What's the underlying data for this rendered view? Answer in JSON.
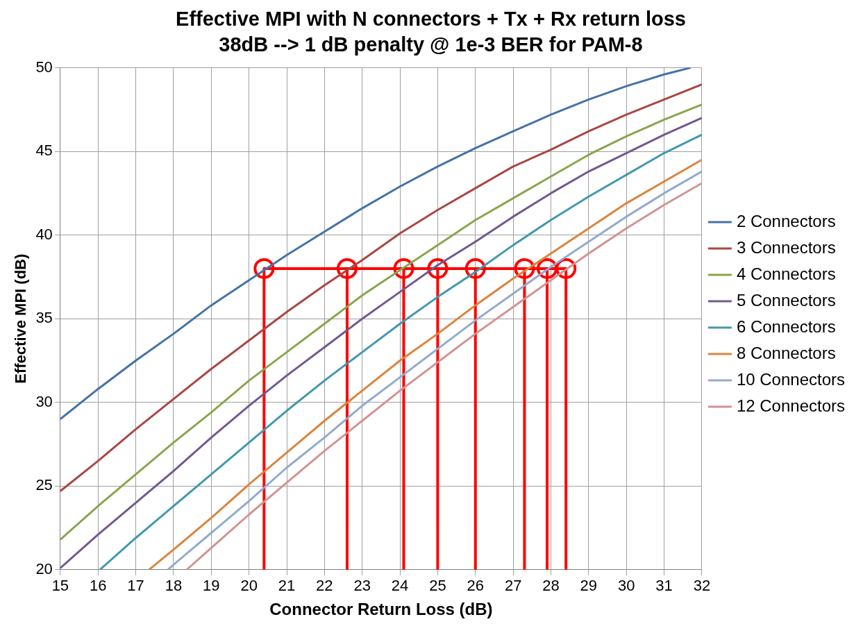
{
  "chart_data": {
    "type": "line",
    "title": "Effective MPI with N connectors + Tx + Rx return loss",
    "subtitle": "38dB --> 1 dB penalty @ 1e-3 BER for PAM-8",
    "xlabel": "Connector Return Loss (dB)",
    "ylabel": "Effective MPI (dB)",
    "xlim": [
      15,
      32
    ],
    "xticks": [
      15,
      16,
      17,
      18,
      19,
      20,
      21,
      22,
      23,
      24,
      25,
      26,
      27,
      28,
      29,
      30,
      31,
      32
    ],
    "ylim": [
      20,
      50
    ],
    "yticks": [
      20,
      25,
      30,
      35,
      40,
      45,
      50
    ],
    "grid": true,
    "legend": "right",
    "marker": "none",
    "line_style": "solid",
    "x": [
      15,
      16,
      17,
      18,
      19,
      20,
      21,
      22,
      23,
      24,
      25,
      26,
      27,
      28,
      29,
      30,
      31,
      32
    ],
    "series": [
      {
        "name": "2 Connectors",
        "color": "#4572a7",
        "x": [
          15,
          16,
          17,
          18,
          19,
          20,
          21,
          22,
          23,
          24,
          25,
          26,
          27,
          28,
          29,
          30,
          31,
          31.7
        ],
        "values": [
          29.0,
          30.8,
          32.5,
          34.1,
          35.8,
          37.3,
          38.8,
          40.2,
          41.6,
          42.9,
          44.1,
          45.2,
          46.2,
          47.2,
          48.1,
          48.9,
          49.6,
          50.0
        ]
      },
      {
        "name": "3 Connectors",
        "color": "#aa4643",
        "values": [
          24.7,
          26.5,
          28.4,
          30.2,
          32.0,
          33.7,
          35.4,
          37.0,
          38.5,
          40.1,
          41.5,
          42.8,
          44.1,
          45.1,
          46.2,
          47.2,
          48.1,
          49.0
        ]
      },
      {
        "name": "4 Connectors",
        "color": "#89a54e",
        "values": [
          21.8,
          23.8,
          25.7,
          27.6,
          29.4,
          31.3,
          33.0,
          34.7,
          36.4,
          37.9,
          39.4,
          40.9,
          42.2,
          43.5,
          44.8,
          45.9,
          46.9,
          47.8
        ]
      },
      {
        "name": "5 Connectors",
        "color": "#71588f",
        "values": [
          20.1,
          22.1,
          24.0,
          25.9,
          27.9,
          29.8,
          31.6,
          33.3,
          35.0,
          36.6,
          38.2,
          39.6,
          41.1,
          42.5,
          43.8,
          44.9,
          46.0,
          47.0
        ]
      },
      {
        "name": "6 Connectors",
        "color": "#4198af",
        "x": [
          16.05,
          17,
          18,
          19,
          20,
          21,
          22,
          23,
          24,
          25,
          26,
          27,
          28,
          29,
          30,
          31,
          32
        ],
        "values": [
          20.0,
          21.9,
          23.8,
          25.7,
          27.6,
          29.5,
          31.3,
          33.0,
          34.7,
          36.3,
          37.8,
          39.4,
          40.9,
          42.3,
          43.6,
          44.9,
          46.0
        ]
      },
      {
        "name": "8 Connectors",
        "color": "#db843d",
        "x": [
          17.35,
          18,
          19,
          20,
          21,
          22,
          23,
          24,
          25,
          26,
          27,
          28,
          29,
          30,
          31,
          32
        ],
        "values": [
          20.0,
          21.2,
          23.1,
          25.1,
          27.0,
          28.9,
          30.7,
          32.5,
          34.1,
          35.8,
          37.4,
          38.9,
          40.4,
          41.9,
          43.2,
          44.5
        ]
      },
      {
        "name": "10 Connectors",
        "color": "#93a9cf",
        "x": [
          17.85,
          18,
          19,
          20,
          21,
          22,
          23,
          24,
          25,
          26,
          27,
          28,
          29,
          30,
          31,
          32
        ],
        "values": [
          20.0,
          20.3,
          22.2,
          24.1,
          26.1,
          27.9,
          29.8,
          31.5,
          33.2,
          34.9,
          36.5,
          38.1,
          39.6,
          41.1,
          42.5,
          43.8
        ]
      },
      {
        "name": "12 Connectors",
        "color": "#d19392",
        "x": [
          18.35,
          19,
          20,
          21,
          22,
          23,
          24,
          25,
          26,
          27,
          28,
          29,
          30,
          31,
          32
        ],
        "values": [
          20.0,
          21.3,
          23.3,
          25.2,
          27.1,
          28.9,
          30.7,
          32.4,
          34.1,
          35.7,
          37.3,
          38.9,
          40.4,
          41.8,
          43.1
        ]
      },
      {
        "color": "#ff0000",
        "x": [
          20.4,
          20.4,
          22.6,
          22.6,
          22.6,
          24.1,
          24.1,
          24.1,
          25.0,
          25.0,
          25.0,
          26.0,
          26.0,
          26.0,
          27.3,
          27.3,
          27.3,
          27.9,
          27.9,
          27.9,
          28.4,
          28.4
        ],
        "values": [
          20,
          38,
          38,
          20,
          38,
          38,
          20,
          38,
          38,
          20,
          38,
          38,
          20,
          38,
          38,
          20,
          38,
          38,
          20,
          38,
          38,
          20
        ]
      },
      {
        "type": "scatter",
        "color": "#ff0000",
        "marker": "circle",
        "x": [
          20.4,
          22.6,
          24.1,
          25.0,
          26.0,
          27.3,
          27.9,
          28.4
        ],
        "values": [
          38,
          38,
          38,
          38,
          38,
          38,
          38,
          38
        ]
      }
    ]
  }
}
